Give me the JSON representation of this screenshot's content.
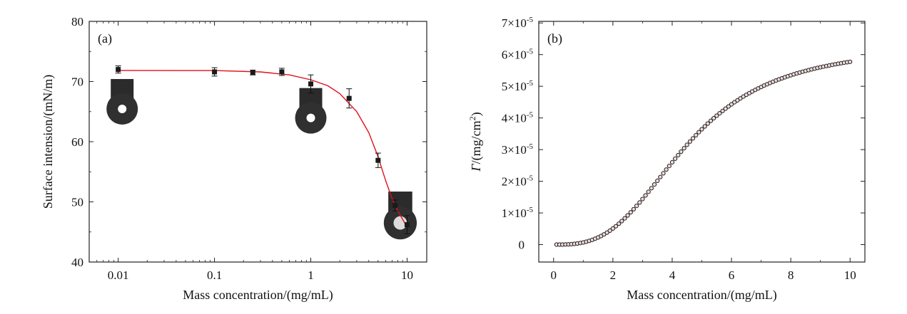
{
  "chart_data": [
    {
      "type": "scatter",
      "panel_label": "(a)",
      "xlabel": "Mass concentration/(mg/mL)",
      "ylabel": "Surface intension/(mN/m)",
      "x_scale": "log",
      "xlim": [
        0.005,
        16
      ],
      "ylim": [
        40,
        80
      ],
      "x_ticks": [
        0.01,
        0.1,
        1,
        10
      ],
      "x_tick_labels": [
        "0.01",
        "0.1",
        "1",
        "10"
      ],
      "y_ticks": [
        40,
        50,
        60,
        70,
        80
      ],
      "y_tick_labels": [
        "40",
        "50",
        "60",
        "70",
        "80"
      ],
      "grid": false,
      "marker_color": "#1a1a1a",
      "fit_color": "#e0101a",
      "points": [
        {
          "x": 0.01,
          "y": 72.0,
          "err": 0.6
        },
        {
          "x": 0.1,
          "y": 71.6,
          "err": 0.7
        },
        {
          "x": 0.25,
          "y": 71.5,
          "err": 0.4
        },
        {
          "x": 0.5,
          "y": 71.6,
          "err": 0.6
        },
        {
          "x": 1,
          "y": 69.6,
          "err": 1.5
        },
        {
          "x": 2.5,
          "y": 67.2,
          "err": 1.6
        },
        {
          "x": 5,
          "y": 56.9,
          "err": 1.2
        },
        {
          "x": 7.5,
          "y": 49.4,
          "err": 0.9
        },
        {
          "x": 10,
          "y": 46.2,
          "err": 1.5
        }
      ],
      "fit_curve": [
        {
          "x": 0.01,
          "y": 71.85
        },
        {
          "x": 0.1,
          "y": 71.82
        },
        {
          "x": 0.3,
          "y": 71.6
        },
        {
          "x": 0.6,
          "y": 71.1
        },
        {
          "x": 1,
          "y": 70.3
        },
        {
          "x": 1.5,
          "y": 69.3
        },
        {
          "x": 2,
          "y": 68.0
        },
        {
          "x": 3,
          "y": 65.0
        },
        {
          "x": 4,
          "y": 61.5
        },
        {
          "x": 5,
          "y": 57.5
        },
        {
          "x": 6,
          "y": 53.5
        },
        {
          "x": 7,
          "y": 50.5
        },
        {
          "x": 8,
          "y": 48.5
        },
        {
          "x": 10,
          "y": 45.8
        }
      ],
      "droplet_images": [
        {
          "x": 0.011,
          "y": 64.5
        },
        {
          "x": 1,
          "y": 63.0
        },
        {
          "x": 8.5,
          "y": 45.5
        }
      ]
    },
    {
      "type": "scatter",
      "panel_label": "(b)",
      "xlabel": "Mass concentration/(mg/mL)",
      "ylabel_symbol": "Γ",
      "ylabel_rest": "/(mg/cm",
      "ylabel_sup": "2",
      "ylabel_end": ")",
      "xlim": [
        -0.5,
        10.5
      ],
      "ylim": [
        -0.55,
        7.05
      ],
      "y_multiplier_exponent": "-5",
      "x_ticks": [
        0,
        2,
        4,
        6,
        8,
        10
      ],
      "x_tick_labels": [
        "0",
        "2",
        "4",
        "6",
        "8",
        "10"
      ],
      "y_ticks": [
        0,
        1,
        2,
        3,
        4,
        5,
        6,
        7
      ],
      "y_tick_labels": [
        "0",
        "1×10",
        "2×10",
        "3×10",
        "4×10",
        "5×10",
        "6×10",
        "7×10"
      ],
      "grid": false,
      "marker_color": "#2a1a1a",
      "curve": {
        "x_start": 0.1,
        "x_end": 10.0,
        "step": 0.1,
        "y_max": 6.3,
        "x_half": 4.5,
        "hill_n": 3.0
      }
    }
  ]
}
